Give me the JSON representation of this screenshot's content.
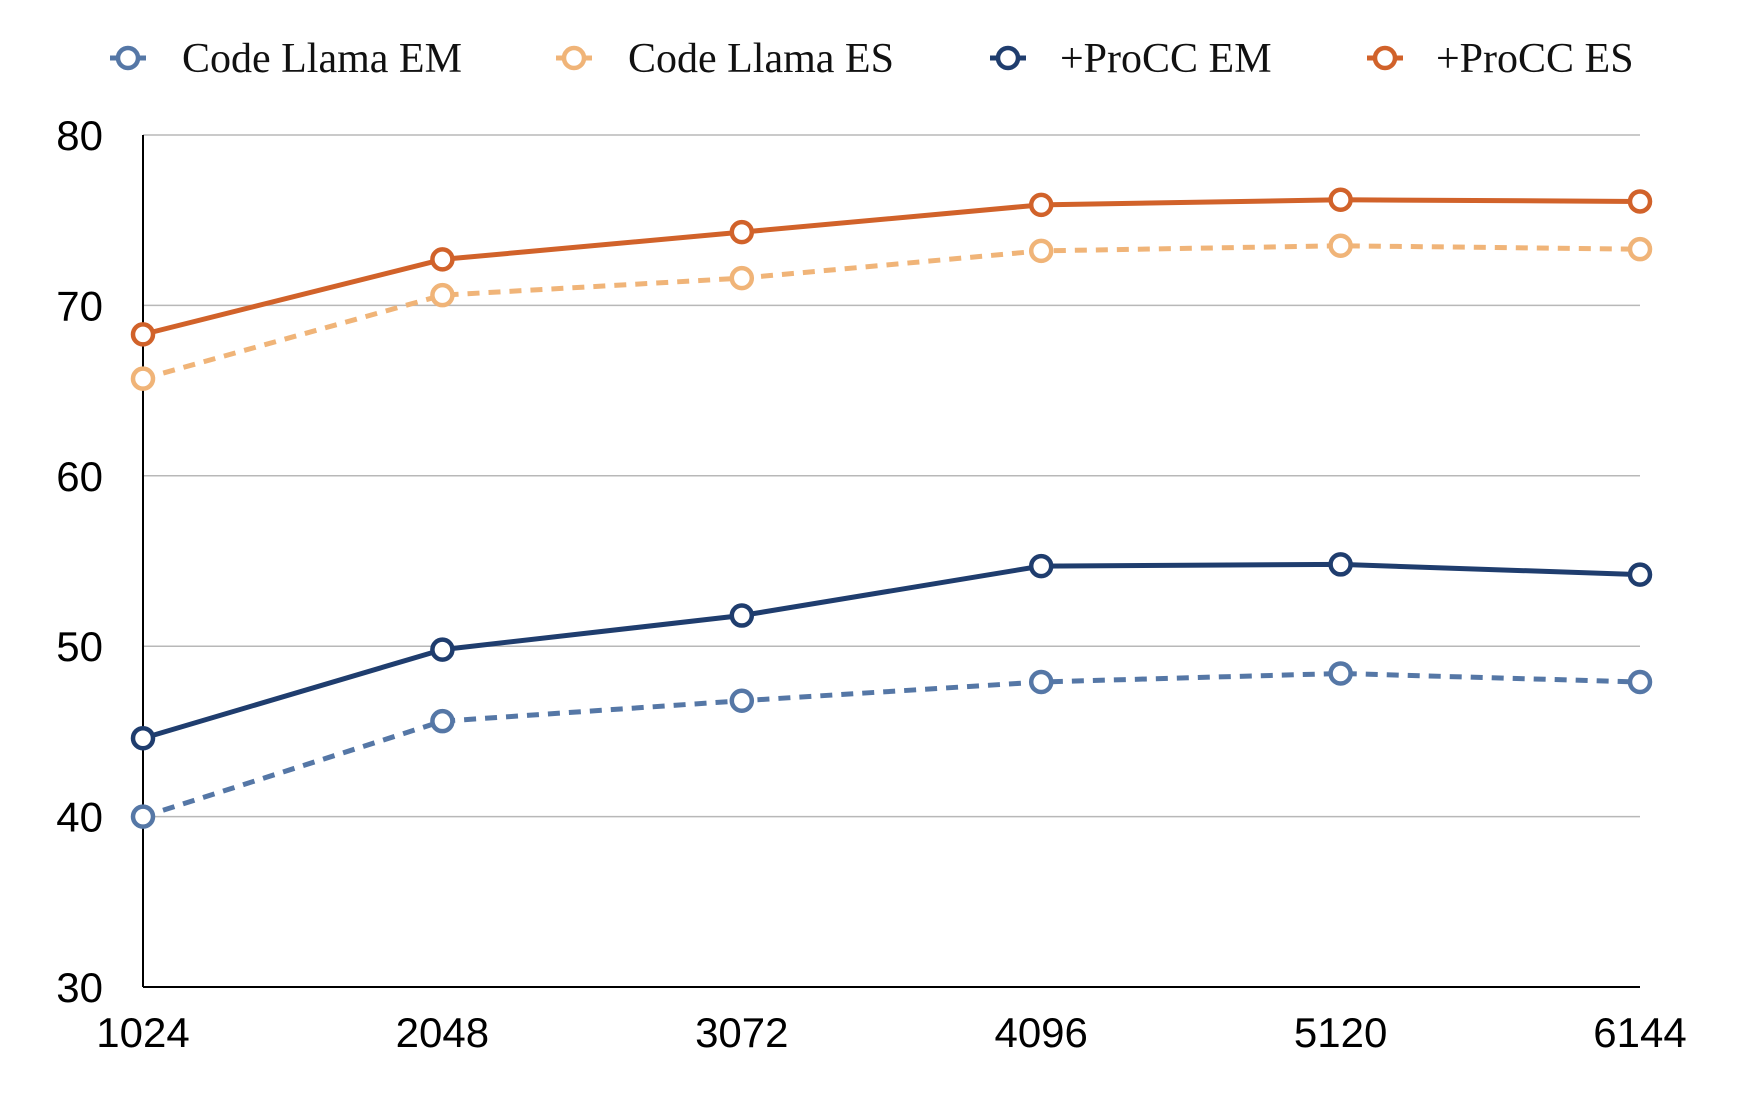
{
  "chart_data": {
    "type": "line",
    "title": "",
    "xlabel": "",
    "ylabel": "",
    "x": [
      1024,
      2048,
      3072,
      4096,
      5120,
      6144
    ],
    "x_tick_labels": [
      "1024",
      "2048",
      "3072",
      "4096",
      "5120",
      "6144"
    ],
    "ylim": [
      30,
      80
    ],
    "y_ticks": [
      30,
      40,
      50,
      60,
      70,
      80
    ],
    "y_tick_labels": [
      "30",
      "40",
      "50",
      "60",
      "70",
      "80"
    ],
    "grid": true,
    "legend_position": "top",
    "series": [
      {
        "name": "Code Llama EM",
        "color": "#5577a6",
        "dashed": true,
        "values": [
          40.0,
          45.6,
          46.8,
          47.9,
          48.4,
          47.9
        ]
      },
      {
        "name": "Code Llama ES",
        "color": "#f0b478",
        "dashed": true,
        "values": [
          65.7,
          70.6,
          71.6,
          73.2,
          73.5,
          73.3
        ]
      },
      {
        "name": "+ProCC EM",
        "color": "#1f3d6e",
        "dashed": false,
        "values": [
          44.6,
          49.8,
          51.8,
          54.7,
          54.8,
          54.2
        ]
      },
      {
        "name": "+ProCC ES",
        "color": "#d1622a",
        "dashed": false,
        "values": [
          68.3,
          72.7,
          74.3,
          75.9,
          76.2,
          76.1
        ]
      }
    ]
  }
}
